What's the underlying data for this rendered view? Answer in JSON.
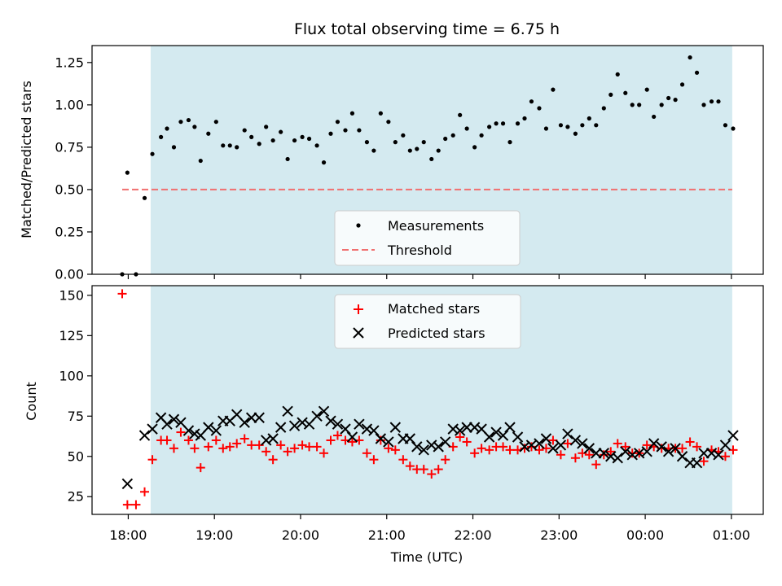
{
  "chart_data": {
    "type": "scatter",
    "title": "Flux total observing time = 6.75 h",
    "xlabel": "Time (UTC)",
    "x_ticks": [
      {
        "hour": 18,
        "label": "18:00"
      },
      {
        "hour": 19,
        "label": "19:00"
      },
      {
        "hour": 20,
        "label": "20:00"
      },
      {
        "hour": 21,
        "label": "21:00"
      },
      {
        "hour": 22,
        "label": "22:00"
      },
      {
        "hour": 23,
        "label": "23:00"
      },
      {
        "hour": 24,
        "label": "00:00"
      },
      {
        "hour": 25,
        "label": "01:00"
      }
    ],
    "xlim": [
      17.58,
      25.37
    ],
    "observing_window": [
      18.26,
      25.01
    ],
    "observing_window_color": "#d4eaf0",
    "top": {
      "ylabel": "Matched/Predicted stars",
      "ylim": [
        0,
        1.35
      ],
      "y_ticks": [
        {
          "value": 0.0,
          "label": "0.00"
        },
        {
          "value": 0.25,
          "label": "0.25"
        },
        {
          "value": 0.5,
          "label": "0.50"
        },
        {
          "value": 0.75,
          "label": "0.75"
        },
        {
          "value": 1.0,
          "label": "1.00"
        },
        {
          "value": 1.25,
          "label": "1.25"
        }
      ],
      "threshold": {
        "value": 0.5,
        "x_range": [
          17.93,
          25.01
        ],
        "color": "#f07070"
      },
      "legend": {
        "measurements": "Measurements",
        "threshold": "Threshold"
      },
      "measurements": [
        [
          17.93,
          0.0
        ],
        [
          17.99,
          0.6
        ],
        [
          18.09,
          0.0
        ],
        [
          18.19,
          0.45
        ],
        [
          18.28,
          0.71
        ],
        [
          18.38,
          0.81
        ],
        [
          18.45,
          0.86
        ],
        [
          18.53,
          0.75
        ],
        [
          18.61,
          0.9
        ],
        [
          18.7,
          0.91
        ],
        [
          18.77,
          0.87
        ],
        [
          18.84,
          0.67
        ],
        [
          18.93,
          0.83
        ],
        [
          19.02,
          0.9
        ],
        [
          19.1,
          0.76
        ],
        [
          19.18,
          0.76
        ],
        [
          19.26,
          0.75
        ],
        [
          19.35,
          0.85
        ],
        [
          19.43,
          0.81
        ],
        [
          19.52,
          0.77
        ],
        [
          19.6,
          0.87
        ],
        [
          19.68,
          0.79
        ],
        [
          19.77,
          0.84
        ],
        [
          19.85,
          0.68
        ],
        [
          19.93,
          0.79
        ],
        [
          20.02,
          0.81
        ],
        [
          20.1,
          0.8
        ],
        [
          20.19,
          0.76
        ],
        [
          20.27,
          0.66
        ],
        [
          20.35,
          0.83
        ],
        [
          20.43,
          0.9
        ],
        [
          20.52,
          0.85
        ],
        [
          20.6,
          0.95
        ],
        [
          20.68,
          0.85
        ],
        [
          20.77,
          0.78
        ],
        [
          20.85,
          0.73
        ],
        [
          20.93,
          0.95
        ],
        [
          21.02,
          0.9
        ],
        [
          21.1,
          0.78
        ],
        [
          21.19,
          0.82
        ],
        [
          21.27,
          0.73
        ],
        [
          21.35,
          0.74
        ],
        [
          21.43,
          0.78
        ],
        [
          21.52,
          0.68
        ],
        [
          21.6,
          0.73
        ],
        [
          21.68,
          0.8
        ],
        [
          21.77,
          0.82
        ],
        [
          21.85,
          0.94
        ],
        [
          21.93,
          0.86
        ],
        [
          22.02,
          0.75
        ],
        [
          22.1,
          0.82
        ],
        [
          22.19,
          0.87
        ],
        [
          22.27,
          0.89
        ],
        [
          22.35,
          0.89
        ],
        [
          22.43,
          0.78
        ],
        [
          22.52,
          0.89
        ],
        [
          22.6,
          0.92
        ],
        [
          22.68,
          1.02
        ],
        [
          22.77,
          0.98
        ],
        [
          22.85,
          0.86
        ],
        [
          22.93,
          1.09
        ],
        [
          23.02,
          0.88
        ],
        [
          23.1,
          0.87
        ],
        [
          23.19,
          0.83
        ],
        [
          23.27,
          0.88
        ],
        [
          23.35,
          0.92
        ],
        [
          23.43,
          0.88
        ],
        [
          23.52,
          0.98
        ],
        [
          23.6,
          1.06
        ],
        [
          23.68,
          1.18
        ],
        [
          23.77,
          1.07
        ],
        [
          23.85,
          1.0
        ],
        [
          23.93,
          1.0
        ],
        [
          24.02,
          1.09
        ],
        [
          24.1,
          0.93
        ],
        [
          24.19,
          1.0
        ],
        [
          24.27,
          1.04
        ],
        [
          24.35,
          1.03
        ],
        [
          24.43,
          1.12
        ],
        [
          24.52,
          1.28
        ],
        [
          24.6,
          1.19
        ],
        [
          24.68,
          1.0
        ],
        [
          24.77,
          1.02
        ],
        [
          24.85,
          1.02
        ],
        [
          24.93,
          0.88
        ],
        [
          25.02,
          0.86
        ]
      ]
    },
    "bottom": {
      "ylabel": "Count",
      "ylim": [
        14,
        156
      ],
      "y_ticks": [
        {
          "value": 25,
          "label": "25"
        },
        {
          "value": 50,
          "label": "50"
        },
        {
          "value": 75,
          "label": "75"
        },
        {
          "value": 100,
          "label": "100"
        },
        {
          "value": 125,
          "label": "125"
        },
        {
          "value": 150,
          "label": "150"
        }
      ],
      "legend": {
        "matched": "Matched stars",
        "predicted": "Predicted stars"
      },
      "matched_color": "#ff0000",
      "predicted_color": "#000000",
      "matched": [
        [
          17.93,
          151
        ],
        [
          17.99,
          20
        ],
        [
          18.09,
          20
        ],
        [
          18.19,
          28
        ],
        [
          18.28,
          48
        ],
        [
          18.38,
          60
        ],
        [
          18.45,
          60
        ],
        [
          18.53,
          55
        ],
        [
          18.61,
          65
        ],
        [
          18.7,
          60
        ],
        [
          18.77,
          55
        ],
        [
          18.84,
          43
        ],
        [
          18.93,
          56
        ],
        [
          19.02,
          60
        ],
        [
          19.1,
          55
        ],
        [
          19.18,
          56
        ],
        [
          19.26,
          58
        ],
        [
          19.35,
          61
        ],
        [
          19.43,
          57
        ],
        [
          19.52,
          57
        ],
        [
          19.6,
          53
        ],
        [
          19.68,
          48
        ],
        [
          19.77,
          57
        ],
        [
          19.85,
          53
        ],
        [
          19.93,
          55
        ],
        [
          20.02,
          57
        ],
        [
          20.1,
          56
        ],
        [
          20.19,
          56
        ],
        [
          20.27,
          52
        ],
        [
          20.35,
          60
        ],
        [
          20.43,
          63
        ],
        [
          20.52,
          60
        ],
        [
          20.6,
          59
        ],
        [
          20.68,
          60
        ],
        [
          20.77,
          52
        ],
        [
          20.85,
          48
        ],
        [
          20.93,
          60
        ],
        [
          21.02,
          55
        ],
        [
          21.1,
          54
        ],
        [
          21.19,
          48
        ],
        [
          21.27,
          44
        ],
        [
          21.35,
          42
        ],
        [
          21.43,
          42
        ],
        [
          21.52,
          39
        ],
        [
          21.6,
          42
        ],
        [
          21.68,
          48
        ],
        [
          21.77,
          56
        ],
        [
          21.85,
          62
        ],
        [
          21.93,
          59
        ],
        [
          22.02,
          52
        ],
        [
          22.1,
          55
        ],
        [
          22.19,
          54
        ],
        [
          22.27,
          56
        ],
        [
          22.35,
          56
        ],
        [
          22.43,
          54
        ],
        [
          22.52,
          54
        ],
        [
          22.6,
          55
        ],
        [
          22.68,
          56
        ],
        [
          22.77,
          54
        ],
        [
          22.85,
          55
        ],
        [
          22.93,
          60
        ],
        [
          23.02,
          51
        ],
        [
          23.1,
          58
        ],
        [
          23.19,
          49
        ],
        [
          23.27,
          52
        ],
        [
          23.35,
          51
        ],
        [
          23.43,
          45
        ],
        [
          23.52,
          51
        ],
        [
          23.6,
          53
        ],
        [
          23.68,
          58
        ],
        [
          23.77,
          56
        ],
        [
          23.85,
          52
        ],
        [
          23.93,
          52
        ],
        [
          24.02,
          57
        ],
        [
          24.1,
          56
        ],
        [
          24.19,
          55
        ],
        [
          24.27,
          55
        ],
        [
          24.35,
          55
        ],
        [
          24.43,
          55
        ],
        [
          24.52,
          59
        ],
        [
          24.6,
          56
        ],
        [
          24.68,
          47
        ],
        [
          24.77,
          54
        ],
        [
          24.85,
          53
        ],
        [
          24.93,
          50
        ],
        [
          25.02,
          54
        ]
      ],
      "predicted": [
        [
          17.99,
          33
        ],
        [
          18.19,
          63
        ],
        [
          18.28,
          67
        ],
        [
          18.38,
          74
        ],
        [
          18.45,
          70
        ],
        [
          18.53,
          73
        ],
        [
          18.61,
          71
        ],
        [
          18.7,
          66
        ],
        [
          18.77,
          64
        ],
        [
          18.84,
          63
        ],
        [
          18.93,
          68
        ],
        [
          19.02,
          66
        ],
        [
          19.1,
          72
        ],
        [
          19.18,
          72
        ],
        [
          19.26,
          76
        ],
        [
          19.35,
          71
        ],
        [
          19.43,
          74
        ],
        [
          19.52,
          74
        ],
        [
          19.6,
          60
        ],
        [
          19.68,
          61
        ],
        [
          19.77,
          68
        ],
        [
          19.85,
          78
        ],
        [
          19.93,
          69
        ],
        [
          20.02,
          71
        ],
        [
          20.1,
          70
        ],
        [
          20.19,
          75
        ],
        [
          20.27,
          78
        ],
        [
          20.35,
          72
        ],
        [
          20.43,
          70
        ],
        [
          20.52,
          67
        ],
        [
          20.6,
          62
        ],
        [
          20.68,
          70
        ],
        [
          20.77,
          67
        ],
        [
          20.85,
          66
        ],
        [
          20.93,
          61
        ],
        [
          21.02,
          59
        ],
        [
          21.1,
          68
        ],
        [
          21.19,
          61
        ],
        [
          21.27,
          61
        ],
        [
          21.35,
          56
        ],
        [
          21.43,
          54
        ],
        [
          21.52,
          57
        ],
        [
          21.6,
          56
        ],
        [
          21.68,
          59
        ],
        [
          21.77,
          67
        ],
        [
          21.85,
          66
        ],
        [
          21.93,
          68
        ],
        [
          22.02,
          68
        ],
        [
          22.1,
          67
        ],
        [
          22.19,
          62
        ],
        [
          22.27,
          65
        ],
        [
          22.35,
          63
        ],
        [
          22.43,
          68
        ],
        [
          22.52,
          62
        ],
        [
          22.6,
          56
        ],
        [
          22.68,
          57
        ],
        [
          22.77,
          58
        ],
        [
          22.85,
          61
        ],
        [
          22.93,
          55
        ],
        [
          23.02,
          57
        ],
        [
          23.1,
          64
        ],
        [
          23.19,
          60
        ],
        [
          23.27,
          58
        ],
        [
          23.35,
          55
        ],
        [
          23.43,
          52
        ],
        [
          23.52,
          52
        ],
        [
          23.6,
          50
        ],
        [
          23.68,
          49
        ],
        [
          23.77,
          53
        ],
        [
          23.85,
          51
        ],
        [
          23.93,
          52
        ],
        [
          24.02,
          53
        ],
        [
          24.1,
          58
        ],
        [
          24.19,
          56
        ],
        [
          24.27,
          53
        ],
        [
          24.35,
          55
        ],
        [
          24.43,
          50
        ],
        [
          24.52,
          46
        ],
        [
          24.6,
          46
        ],
        [
          24.68,
          52
        ],
        [
          24.77,
          52
        ],
        [
          24.85,
          51
        ],
        [
          24.93,
          57
        ],
        [
          25.02,
          63
        ]
      ]
    }
  }
}
